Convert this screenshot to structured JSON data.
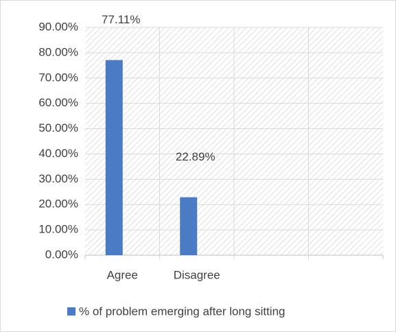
{
  "chart_data": {
    "type": "bar",
    "categories": [
      "Agree",
      "Disagree",
      null,
      null
    ],
    "series": [
      {
        "name": "% of problem emerging after long sitting",
        "color": "#4a7bc4",
        "values": [
          77.11,
          22.89,
          null,
          null
        ],
        "value_labels": [
          "77.11%",
          "22.89%",
          null,
          null
        ]
      }
    ],
    "ylim": [
      0,
      90
    ],
    "yticks": [
      {
        "value": 0,
        "label": "0.00%"
      },
      {
        "value": 10,
        "label": "10.00%"
      },
      {
        "value": 20,
        "label": "20.00%"
      },
      {
        "value": 30,
        "label": "30.00%"
      },
      {
        "value": 40,
        "label": "40.00%"
      },
      {
        "value": 50,
        "label": "50.00%"
      },
      {
        "value": 60,
        "label": "60.00%"
      },
      {
        "value": 70,
        "label": "70.00%"
      },
      {
        "value": 80,
        "label": "80.00%"
      },
      {
        "value": 90,
        "label": "90.00%"
      }
    ],
    "grid": true,
    "legend": "bottom"
  }
}
